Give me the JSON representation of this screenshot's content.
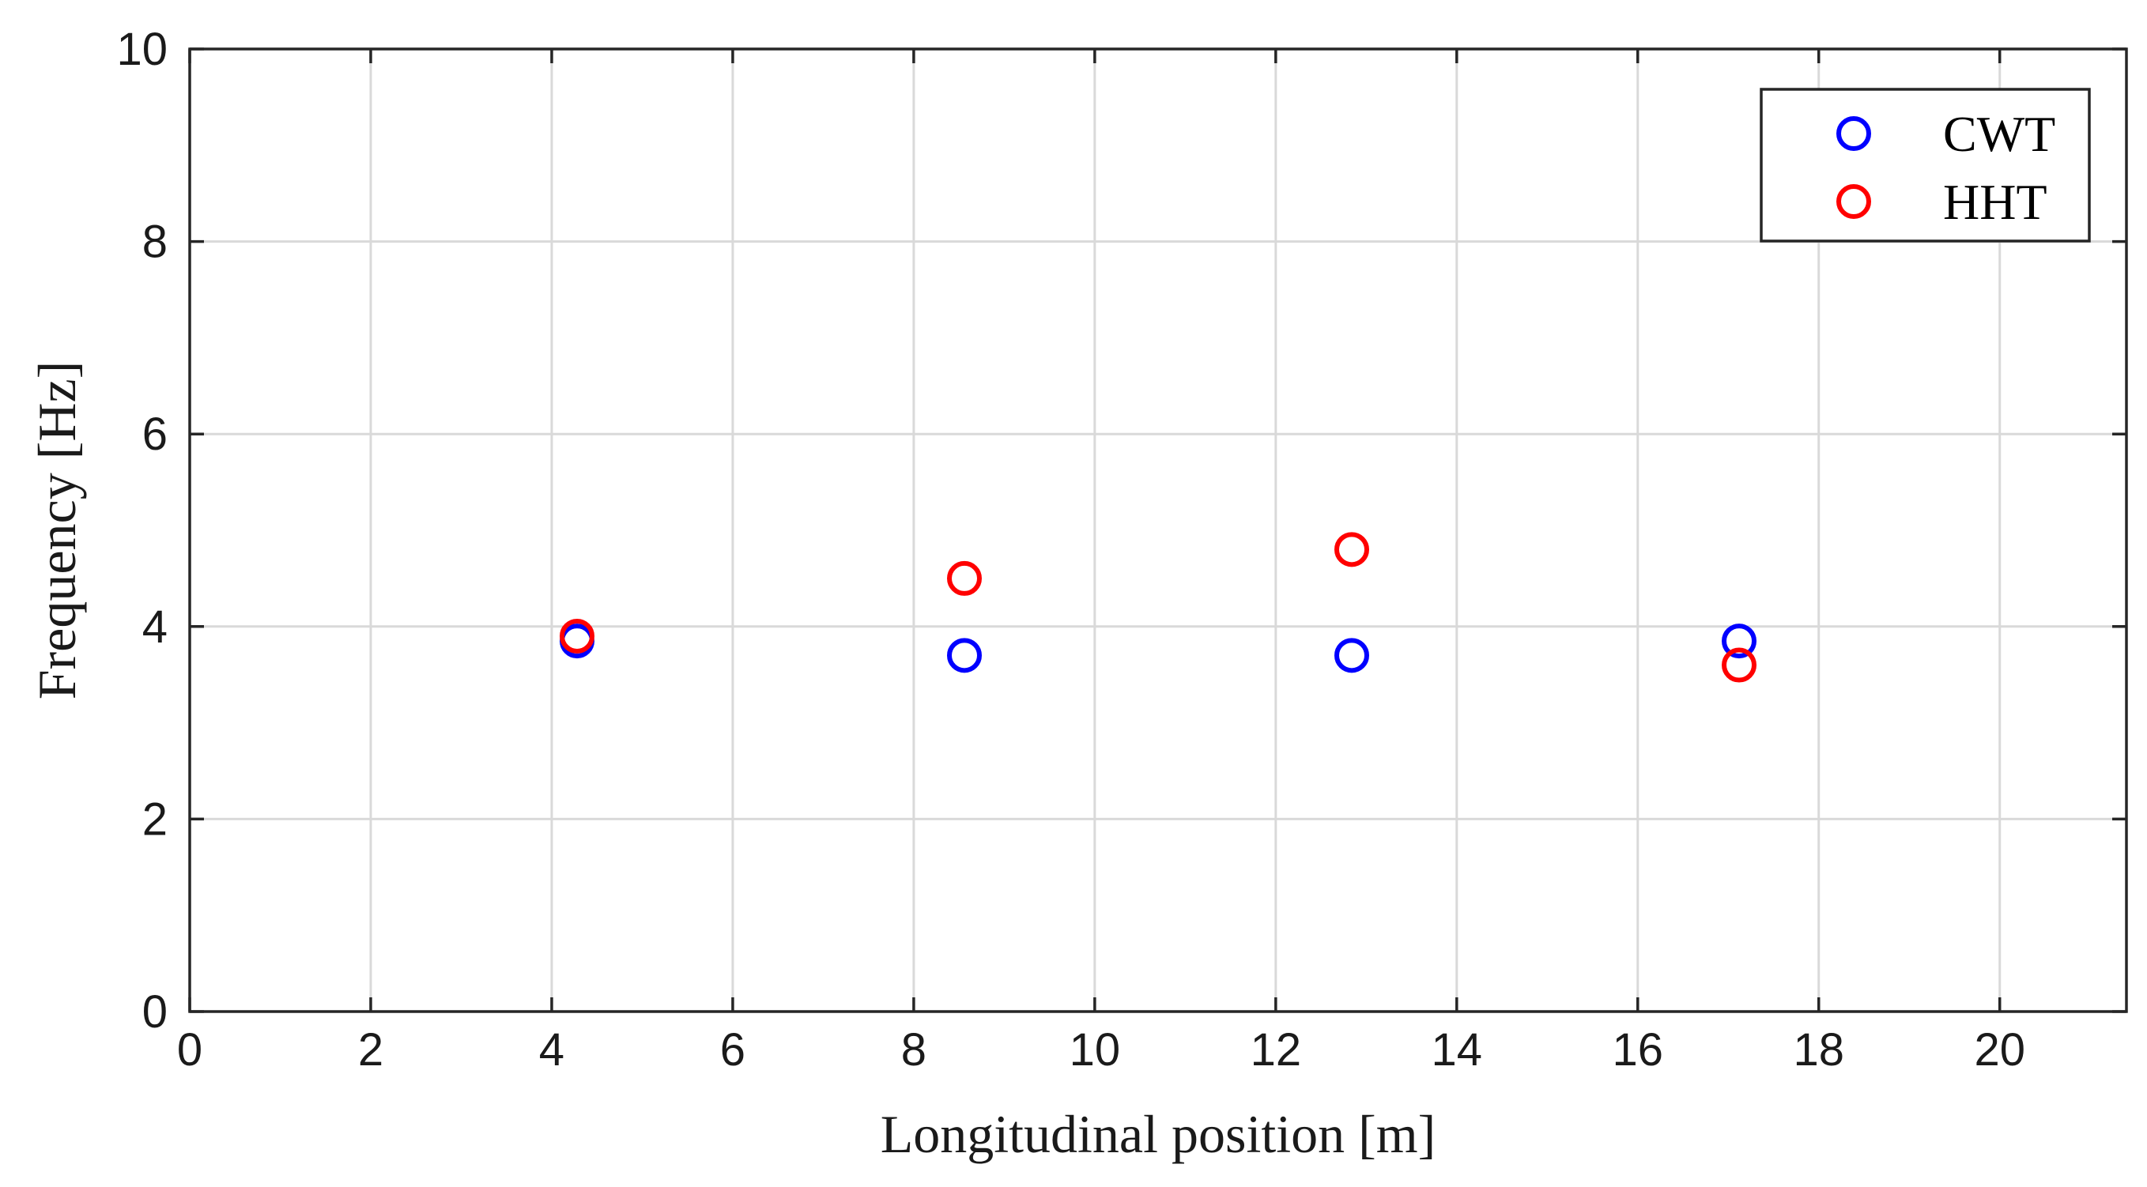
{
  "chart_data": {
    "type": "scatter",
    "title": "",
    "xlabel": "Longitudinal position [m]",
    "ylabel": "Frequency [Hz]",
    "xlim": [
      0,
      21.4
    ],
    "ylim": [
      0,
      10
    ],
    "xticks": [
      0,
      2,
      4,
      6,
      8,
      10,
      12,
      14,
      16,
      18,
      20
    ],
    "yticks": [
      0,
      2,
      4,
      6,
      8,
      10
    ],
    "grid": true,
    "legend_position": "top-right",
    "series": [
      {
        "name": "CWT",
        "color": "#0000ff",
        "marker": "circle-open",
        "x": [
          4.28,
          8.56,
          12.84,
          17.12
        ],
        "y": [
          3.85,
          3.7,
          3.7,
          3.85
        ]
      },
      {
        "name": "HHT",
        "color": "#ff0000",
        "marker": "circle-open",
        "x": [
          4.28,
          8.56,
          12.84,
          17.12
        ],
        "y": [
          3.9,
          4.5,
          4.8,
          3.6
        ]
      }
    ]
  }
}
